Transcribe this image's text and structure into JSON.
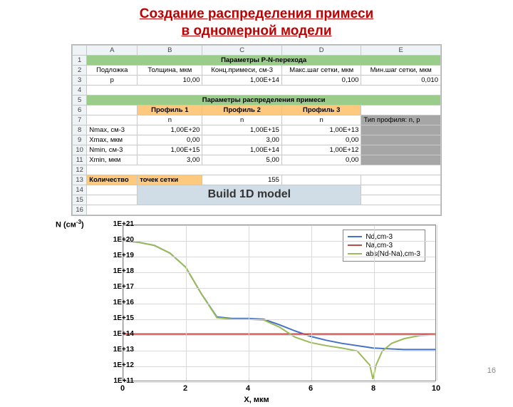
{
  "slide": {
    "title_line1": "Создание распределения примеси",
    "title_line2": "в одномерной модели",
    "page_number": "16"
  },
  "spreadsheet": {
    "col_headers": [
      "",
      "A",
      "B",
      "C",
      "D",
      "E"
    ],
    "row1_header": "Параметры P-N-перехода",
    "row2": {
      "a": "Подложка",
      "b": "Толщина, мкм",
      "c": "Конц.примеси, см-3",
      "d": "Макс.шаг сетки, мкм",
      "e": "Мин.шаг сетки, мкм"
    },
    "row3": {
      "a": "p",
      "b": "10,00",
      "c": "1,00E+14",
      "d": "0,100",
      "e": "0,010"
    },
    "row5_header": "Параметры распределения примеси",
    "row6": {
      "b": "Профиль 1",
      "c": "Профиль 2",
      "d": "Профиль 3"
    },
    "row7": {
      "b": "n",
      "c": "n",
      "d": "n",
      "e": "Тип профиля: n, p"
    },
    "row8": {
      "a": "Nmax, см-3",
      "b": "1,00E+20",
      "c": "1,00E+15",
      "d": "1,00E+13"
    },
    "row9": {
      "a": "Xmax, мкм",
      "b": "0,00",
      "c": "3,00",
      "d": "0,00"
    },
    "row10": {
      "a": "Nmin, см-3",
      "b": "1,00E+15",
      "c": "1,00E+14",
      "d": "1,00E+12"
    },
    "row11": {
      "a": "Xmin, мкм",
      "b": "3,00",
      "c": "5,00",
      "d": "0,00"
    },
    "row13": {
      "a": "Количество",
      "b": "точек сетки",
      "c": "155"
    },
    "build_btn": "Build 1D model"
  },
  "chart": {
    "type": "line-log",
    "y_axis_label": "N (см⁻³)",
    "x_axis_label": "X, мкм",
    "xlim": [
      0,
      10
    ],
    "ylim_exp": [
      11,
      21
    ],
    "x_ticks": [
      0,
      2,
      4,
      6,
      8,
      10
    ],
    "y_ticks_exp": [
      11,
      12,
      13,
      14,
      15,
      16,
      17,
      18,
      19,
      20,
      21
    ],
    "background_color": "#ffffff",
    "grid_color": "#d9d9d9",
    "axis_color": "#888888",
    "tick_fontsize": 10,
    "label_fontsize": 11,
    "legend": {
      "position": "top-right-inside",
      "items": [
        {
          "label": "Nd,cm-3",
          "color": "#4472c4"
        },
        {
          "label": "Na,cm-3",
          "color": "#be4b48"
        },
        {
          "label": "abs(Nd-Na),cm-3",
          "color": "#9bbb59"
        }
      ]
    },
    "series": {
      "Nd": {
        "color": "#4472c4",
        "line_width": 2,
        "points": [
          [
            0.0,
            20.0
          ],
          [
            0.5,
            19.9
          ],
          [
            1.0,
            19.7
          ],
          [
            1.5,
            19.2
          ],
          [
            2.0,
            18.3
          ],
          [
            2.5,
            16.6
          ],
          [
            3.0,
            15.1
          ],
          [
            3.5,
            15.0
          ],
          [
            4.0,
            15.0
          ],
          [
            4.5,
            14.95
          ],
          [
            5.0,
            14.6
          ],
          [
            5.5,
            14.2
          ],
          [
            6.0,
            13.85
          ],
          [
            6.5,
            13.6
          ],
          [
            7.0,
            13.4
          ],
          [
            7.5,
            13.25
          ],
          [
            8.0,
            13.1
          ],
          [
            8.5,
            13.05
          ],
          [
            9.0,
            13.0
          ],
          [
            9.5,
            13.0
          ],
          [
            10.0,
            13.0
          ]
        ]
      },
      "Na": {
        "color": "#be4b48",
        "line_width": 2,
        "points": [
          [
            0.0,
            14.0
          ],
          [
            10.0,
            14.0
          ]
        ]
      },
      "absDiff": {
        "color": "#9bbb59",
        "line_width": 2,
        "points": [
          [
            0.0,
            20.0
          ],
          [
            0.5,
            19.9
          ],
          [
            1.0,
            19.7
          ],
          [
            1.5,
            19.2
          ],
          [
            2.0,
            18.3
          ],
          [
            2.5,
            16.6
          ],
          [
            3.0,
            15.05
          ],
          [
            3.5,
            14.95
          ],
          [
            4.0,
            14.95
          ],
          [
            4.5,
            14.9
          ],
          [
            5.0,
            14.45
          ],
          [
            5.5,
            13.8
          ],
          [
            6.0,
            13.45
          ],
          [
            6.5,
            13.25
          ],
          [
            7.0,
            13.1
          ],
          [
            7.5,
            12.9
          ],
          [
            7.9,
            12.0
          ],
          [
            8.0,
            11.1
          ],
          [
            8.1,
            12.0
          ],
          [
            8.3,
            12.9
          ],
          [
            8.6,
            13.4
          ],
          [
            9.0,
            13.7
          ],
          [
            9.5,
            13.9
          ],
          [
            10.0,
            13.95
          ]
        ]
      }
    }
  }
}
